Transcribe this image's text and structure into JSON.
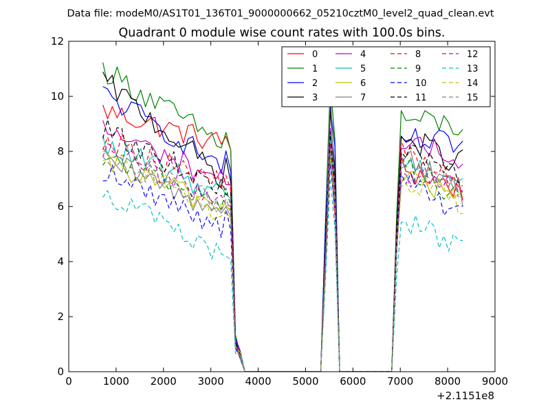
{
  "header": {
    "datafile_text": "Data file: modeM0/AS1T01_136T01_9000000662_05210cztM0_level2_quad_clean.evt"
  },
  "chart_data": {
    "type": "line",
    "title": "Quadrant 0 module wise count rates with 100.0s bins.",
    "xlabel": "",
    "ylabel": "",
    "x_offset_label": "+2.1151e8",
    "xlim": [
      0,
      9000
    ],
    "ylim": [
      0,
      12
    ],
    "x_ticks": [
      0,
      1000,
      2000,
      3000,
      4000,
      5000,
      6000,
      7000,
      8000,
      9000
    ],
    "y_ticks": [
      0,
      2,
      4,
      6,
      8,
      10,
      12
    ],
    "x_tick_labels": [
      "0",
      "1000",
      "2000",
      "3000",
      "4000",
      "5000",
      "6000",
      "7000",
      "8000",
      "9000"
    ],
    "y_tick_labels": [
      "0",
      "2",
      "4",
      "6",
      "8",
      "10",
      "12"
    ],
    "grid": false,
    "legend_position": "top-right",
    "x_start": 720,
    "x_step": 100,
    "n_points": 77,
    "segments": [
      {
        "name": "segment-1",
        "start_index": 0,
        "values_count": 27
      },
      {
        "name": "gap-1",
        "start_index": 27,
        "values_count": 20
      },
      {
        "name": "segment-2",
        "start_index": 47,
        "values_count": 3
      },
      {
        "name": "gap-2",
        "start_index": 50,
        "values_count": 12
      },
      {
        "name": "segment-3",
        "start_index": 62,
        "values_count": 15
      }
    ],
    "series": [
      {
        "name": "0",
        "color": "#ff0000",
        "dash": "solid",
        "base": [
          9.5,
          8.3,
          6.7,
          8.2,
          7.4,
          6.6
        ]
      },
      {
        "name": "1",
        "color": "#008000",
        "dash": "solid",
        "base": [
          11.0,
          8.3,
          9.9,
          11.1,
          9.2,
          8.9
        ]
      },
      {
        "name": "2",
        "color": "#0000ff",
        "dash": "solid",
        "base": [
          10.1,
          7.5,
          9.6,
          10.0,
          8.4,
          8.2
        ]
      },
      {
        "name": "3",
        "color": "#000000",
        "dash": "solid",
        "base": [
          10.6,
          7.1,
          8.6,
          10.0,
          8.5,
          7.6
        ]
      },
      {
        "name": "4",
        "color": "#bf00bf",
        "dash": "solid",
        "base": [
          8.8,
          7.0,
          8.1,
          9.5,
          8.2,
          7.8
        ]
      },
      {
        "name": "5",
        "color": "#00bfbf",
        "dash": "solid",
        "base": [
          8.2,
          6.5,
          7.8,
          9.0,
          7.6,
          7.0
        ]
      },
      {
        "name": "6",
        "color": "#bfbf00",
        "dash": "solid",
        "base": [
          7.6,
          6.0,
          7.2,
          8.3,
          7.2,
          6.2
        ]
      },
      {
        "name": "7",
        "color": "#808080",
        "dash": "solid",
        "base": [
          7.7,
          5.8,
          7.4,
          10.9,
          8.0,
          6.4
        ]
      },
      {
        "name": "8",
        "color": "#ff0000",
        "dash": "dashed",
        "base": [
          8.5,
          6.8,
          7.9,
          8.8,
          8.0,
          6.9
        ]
      },
      {
        "name": "9",
        "color": "#008000",
        "dash": "dashed",
        "base": [
          7.9,
          6.2,
          7.5,
          8.5,
          7.6,
          6.4
        ]
      },
      {
        "name": "10",
        "color": "#0000ff",
        "dash": "dashed",
        "base": [
          7.3,
          5.3,
          7.0,
          8.0,
          7.0,
          5.6
        ]
      },
      {
        "name": "11",
        "color": "#000000",
        "dash": "dashed",
        "base": [
          8.8,
          6.7,
          8.0,
          9.0,
          7.9,
          7.2
        ]
      },
      {
        "name": "12",
        "color": "#bf00bf",
        "dash": "dashed",
        "base": [
          8.1,
          6.2,
          7.5,
          8.7,
          7.3,
          6.6
        ]
      },
      {
        "name": "13",
        "color": "#00bfbf",
        "dash": "dashed",
        "base": [
          6.6,
          4.2,
          6.1,
          7.6,
          5.6,
          4.5
        ]
      },
      {
        "name": "14",
        "color": "#bfbf00",
        "dash": "dashed",
        "base": [
          7.9,
          5.7,
          7.3,
          8.3,
          7.0,
          6.2
        ]
      },
      {
        "name": "15",
        "color": "#808080",
        "dash": "dashed",
        "base": [
          8.0,
          6.0,
          7.4,
          8.5,
          7.3,
          6.5
        ]
      }
    ]
  }
}
